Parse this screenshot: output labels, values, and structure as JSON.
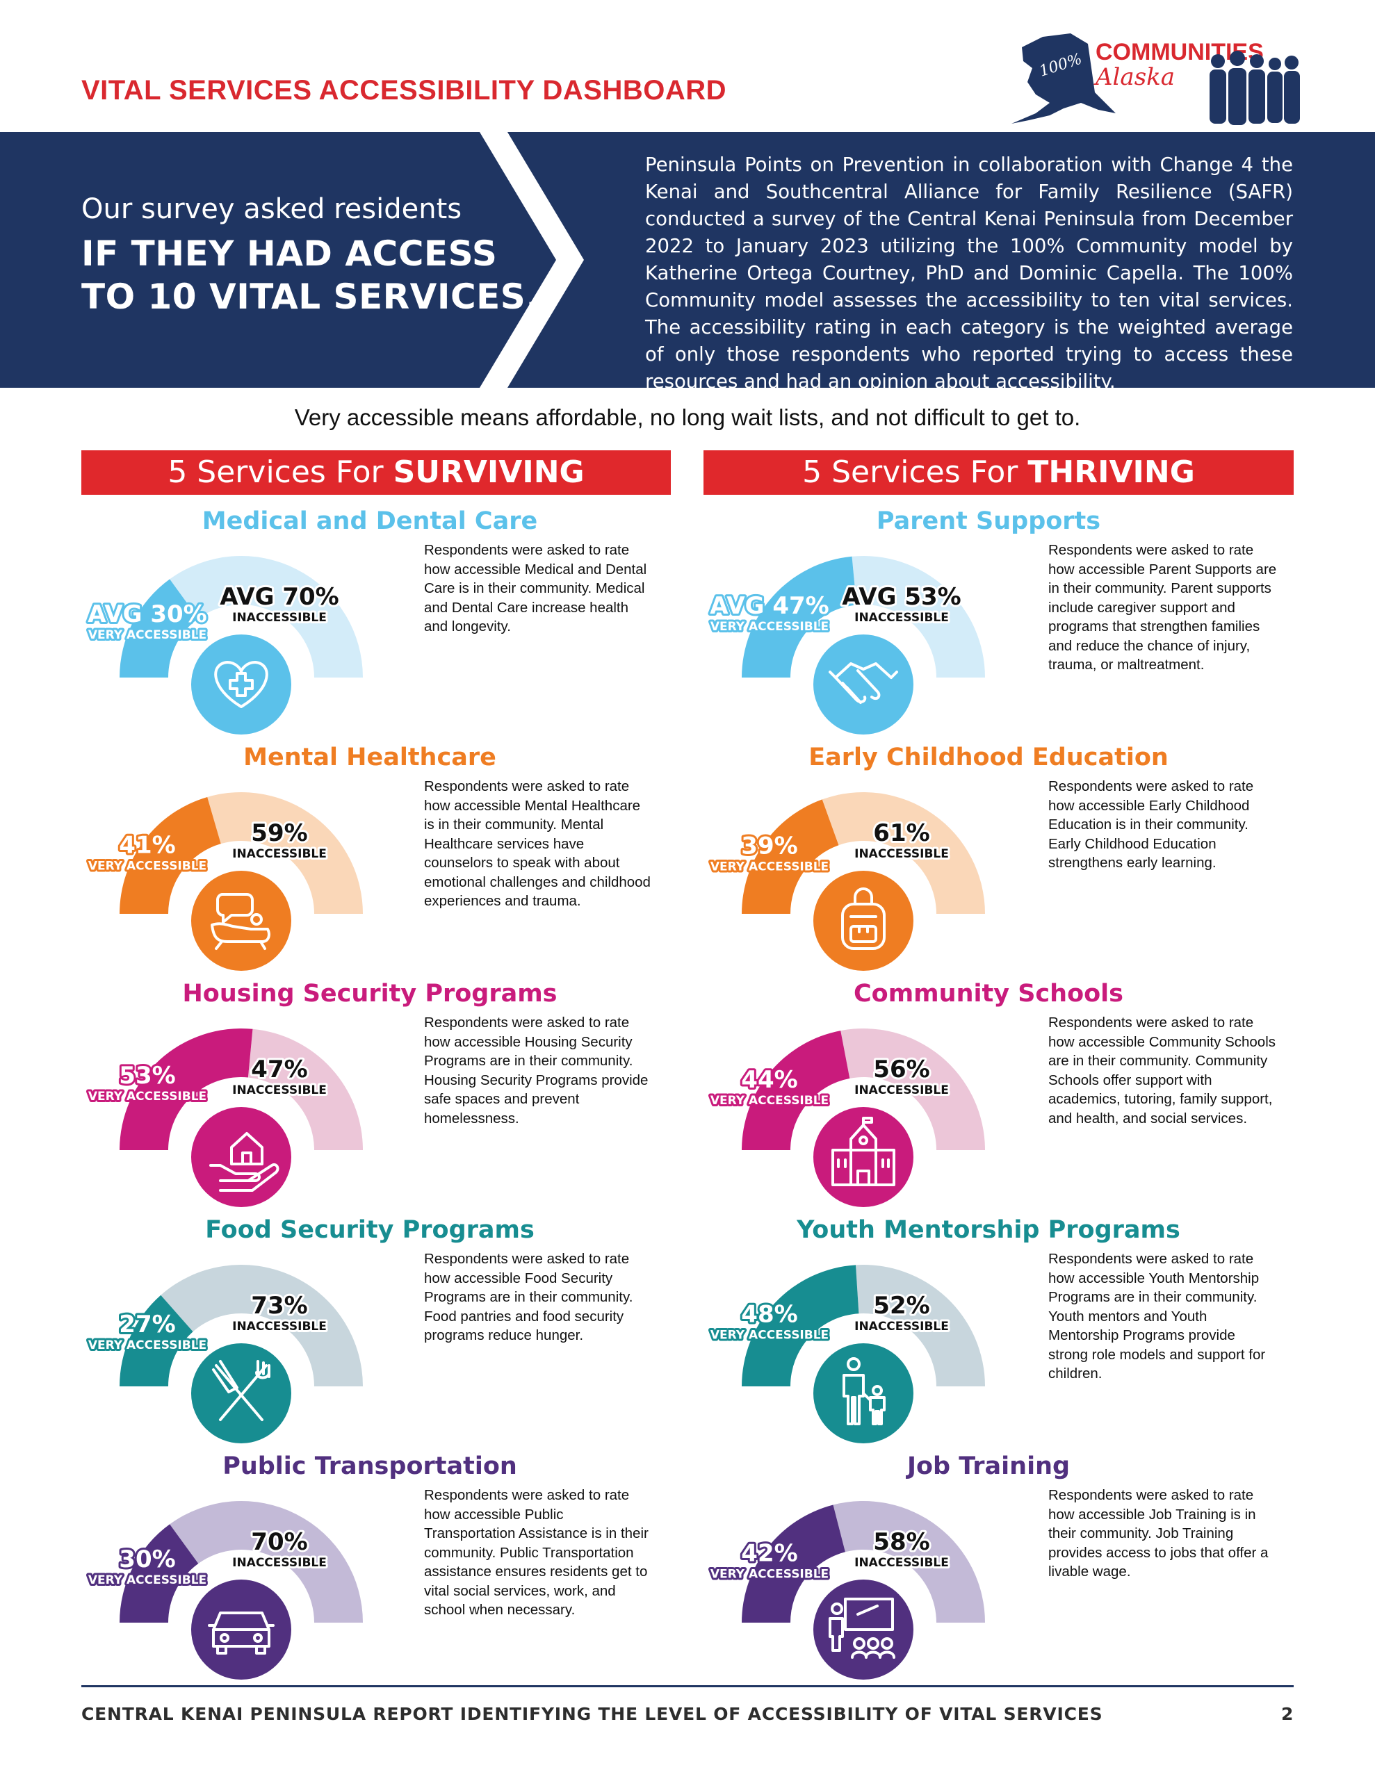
{
  "header": {
    "title": "VITAL SERVICES ACCESSIBILITY DASHBOARD"
  },
  "logo": {
    "badge": "100%",
    "line1": "COMMUNITIES",
    "line2": "Alaska"
  },
  "banner": {
    "subtitle": "Our survey asked residents",
    "headline_line1": "IF THEY HAD ACCESS",
    "headline_line2": "TO 10 VITAL SERVICES.",
    "body": "Peninsula Points on Prevention in collaboration with Change 4 the Kenai and Southcentral Alliance for Family Resilience (SAFR) conducted a survey of the Central Kenai Peninsula from December 2022 to January 2023 utilizing the 100% Community model by Katherine Ortega Courtney, PhD and Dominic Capella. The 100% Community model assesses the accessibility to ten vital services. The accessibility rating in each category is the weighted average of only those respondents who reported trying to access these resources and had an opinion about accessibility."
  },
  "definition": "Very accessible means affordable, no long wait lists, and not difficult to get to.",
  "sections": {
    "surviving": {
      "prefix": "5 Services For ",
      "bold": "SURVIVING"
    },
    "thriving": {
      "prefix": "5 Services For ",
      "bold": "THRIVING"
    }
  },
  "chart_data": {
    "type": "gauge",
    "series_labels": {
      "accessible": "VERY ACCESSIBLE",
      "inaccessible": "INACCESSIBLE"
    },
    "items": [
      {
        "title": "Medical and Dental Care",
        "group": "surviving",
        "very_accessible": 30,
        "inaccessible": 70,
        "va_text": "AVG 30%",
        "in_text": "AVG 70%",
        "color": "#5bc1ea",
        "light": "#d3ecf9",
        "icon": "medical-cross-heart-icon",
        "description": "Respondents were asked to rate how accessible Medical and Dental Care is in their community. Medical and Dental Care increase health and longevity."
      },
      {
        "title": "Parent Supports",
        "group": "thriving",
        "very_accessible": 47,
        "inaccessible": 53,
        "va_text": "AVG 47%",
        "in_text": "AVG 53%",
        "color": "#5bc1ea",
        "light": "#d3ecf9",
        "icon": "handshake-icon",
        "description": "Respondents were asked to rate how accessible Parent Supports are in their community. Parent supports include caregiver support and programs that strengthen families and reduce the chance of injury, trauma, or maltreatment."
      },
      {
        "title": "Mental Healthcare",
        "group": "surviving",
        "very_accessible": 41,
        "inaccessible": 59,
        "va_text": "41%",
        "in_text": "59%",
        "color": "#ef7d22",
        "light": "#fad7b8",
        "icon": "counseling-couch-icon",
        "description": "Respondents were asked to rate how accessible Mental Healthcare is in their community. Mental Healthcare services have counselors to speak with about emotional challenges and childhood experiences and trauma."
      },
      {
        "title": "Early Childhood Education",
        "group": "thriving",
        "very_accessible": 39,
        "inaccessible": 61,
        "va_text": "39%",
        "in_text": "61%",
        "color": "#ef7d22",
        "light": "#fad7b8",
        "icon": "backpack-icon",
        "description": "Respondents were asked to rate how accessible Early Childhood Education is in their community. Early Childhood Education strengthens early learning."
      },
      {
        "title": "Housing Security Programs",
        "group": "surviving",
        "very_accessible": 53,
        "inaccessible": 47,
        "va_text": "53%",
        "in_text": "47%",
        "color": "#c91b7c",
        "light": "#ecc6d8",
        "icon": "house-in-hand-icon",
        "description": "Respondents were asked to rate how accessible Housing Security Programs are in their community.  Housing Security Programs provide safe spaces and prevent homelessness."
      },
      {
        "title": "Community Schools",
        "group": "thriving",
        "very_accessible": 44,
        "inaccessible": 56,
        "va_text": "44%",
        "in_text": "56%",
        "color": "#c91b7c",
        "light": "#ecc6d8",
        "icon": "schoolhouse-icon",
        "description": "Respondents were asked to rate how accessible Community Schools are in their community. Community Schools offer support with academics, tutoring, family support, and health, and social services."
      },
      {
        "title": "Food Security Programs",
        "group": "surviving",
        "very_accessible": 27,
        "inaccessible": 73,
        "va_text": "27%",
        "in_text": "73%",
        "color": "#178d91",
        "light": "#c8d6dd",
        "icon": "fork-knife-icon",
        "description": "Respondents were asked to rate how accessible Food Security Programs are in their community. Food pantries and food security programs reduce hunger."
      },
      {
        "title": "Youth Mentorship Programs",
        "group": "thriving",
        "very_accessible": 48,
        "inaccessible": 52,
        "va_text": "48%",
        "in_text": "52%",
        "color": "#178d91",
        "light": "#c8d6dd",
        "icon": "adult-and-child-icon",
        "description": "Respondents were asked to rate how accessible Youth Mentorship Programs are in their community. Youth mentors and Youth Mentorship Programs provide strong role models and support for children."
      },
      {
        "title": "Public Transportation",
        "group": "surviving",
        "very_accessible": 30,
        "inaccessible": 70,
        "va_text": "30%",
        "in_text": "70%",
        "color": "#51307f",
        "light": "#c3bad7",
        "icon": "car-icon",
        "description": "Respondents were asked to rate how accessible Public Transportation Assistance is in their community. Public Transportation assistance ensures residents get to vital social services, work, and school when necessary."
      },
      {
        "title": "Job Training",
        "group": "thriving",
        "very_accessible": 42,
        "inaccessible": 58,
        "va_text": "42%",
        "in_text": "58%",
        "color": "#51307f",
        "light": "#c3bad7",
        "icon": "classroom-icon",
        "description": "Respondents were asked to rate how accessible Job Training is in their community. Job Training provides access to jobs that offer a livable wage."
      }
    ]
  },
  "footer": {
    "text": "CENTRAL KENAI PENINSULA REPORT IDENTIFYING THE LEVEL OF ACCESSIBILITY OF VITAL SERVICES",
    "page": "2"
  }
}
